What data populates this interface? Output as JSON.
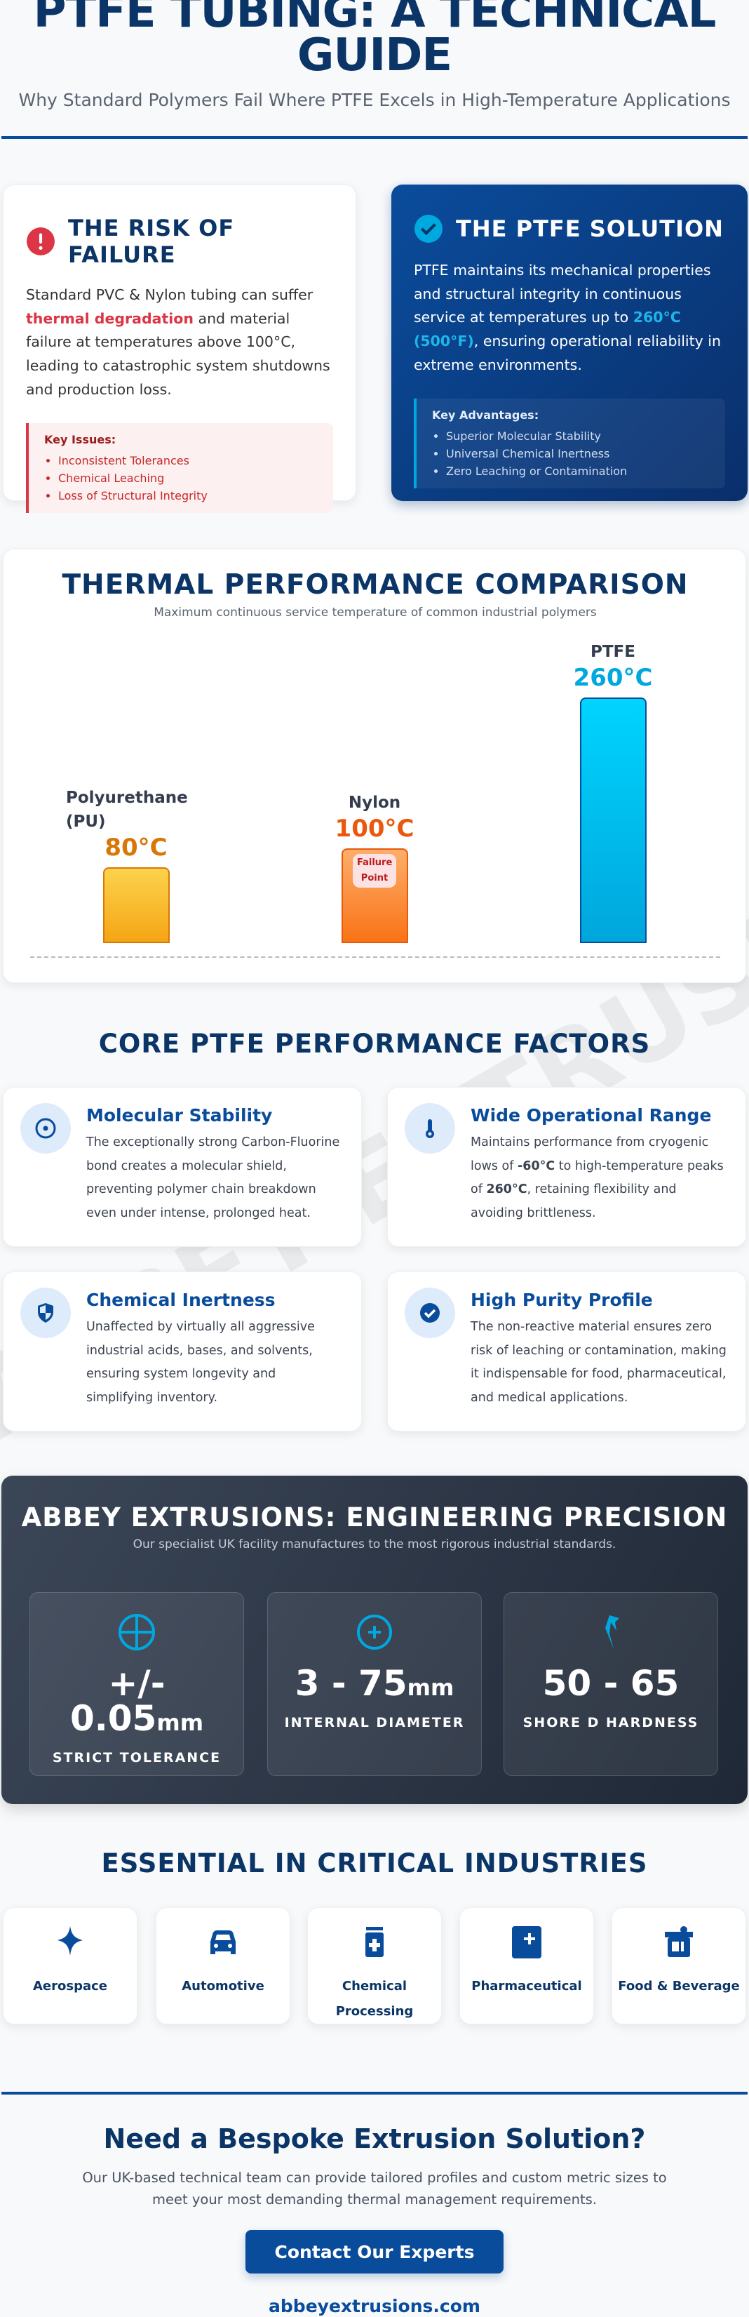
{
  "header": {
    "title": "PTFE TUBING: A TECHNICAL GUIDE",
    "subtitle": "Why Standard Polymers Fail Where PTFE Excels in High-Temperature Applications"
  },
  "risk": {
    "heading": "THE RISK OF FAILURE",
    "icon": "exclamation-circle-icon",
    "text_before": "Standard PVC & Nylon tubing can suffer ",
    "highlight": "thermal degradation",
    "text_after": " and material failure at temperatures above 100°C, leading to catastrophic system shutdowns and production loss.",
    "key_title": "Key Issues:",
    "items": [
      "Inconsistent Tolerances",
      "Chemical Leaching",
      "Loss of Structural Integrity"
    ]
  },
  "solution": {
    "heading": "THE PTFE SOLUTION",
    "icon": "check-circle-icon",
    "text_before": "PTFE maintains its mechanical properties and structural integrity in continuous service at temperatures up to ",
    "highlight": "260°C (500°F)",
    "text_after": ", ensuring operational reliability in extreme environments.",
    "key_title": "Key Advantages:",
    "items": [
      "Superior Molecular Stability",
      "Universal Chemical Inertness",
      "Zero Leaching or Contamination"
    ]
  },
  "chart_data": {
    "type": "bar",
    "title": "THERMAL PERFORMANCE COMPARISON",
    "subtitle": "Maximum continuous service temperature of common industrial polymers",
    "categories": [
      "Polyurethane (PU)",
      "Nylon",
      "PTFE"
    ],
    "values": [
      80,
      100,
      260
    ],
    "value_labels": [
      "80°C",
      "100°C",
      "260°C"
    ],
    "unit": "°C",
    "ylim": [
      0,
      260
    ],
    "grid": false,
    "annotation": "Failure Point",
    "colors": [
      "#f5a514",
      "#f97316",
      "#00b4e6"
    ]
  },
  "factors": {
    "title": "CORE PTFE PERFORMANCE FACTORS",
    "items": [
      {
        "icon": "target-icon",
        "heading": "Molecular Stability",
        "text": "The exceptionally strong Carbon-Fluorine bond creates a molecular shield, preventing polymer chain breakdown even under intense, prolonged heat."
      },
      {
        "icon": "thermometer-icon",
        "heading": "Wide Operational Range",
        "text_a": "Maintains performance from cryogenic lows of ",
        "bold_a": "-60°C",
        "text_b": " to high-temperature peaks of ",
        "bold_b": "260°C",
        "text_c": ", retaining flexibility and avoiding brittleness."
      },
      {
        "icon": "shield-icon",
        "heading": "Chemical Inertness",
        "text": "Unaffected by virtually all aggressive industrial acids, bases, and solvents, ensuring system longevity and simplifying inventory."
      },
      {
        "icon": "check-badge-icon",
        "heading": "High Purity Profile",
        "text": "The non-reactive material ensures zero risk of leaching or contamination, making it indispensable for food, pharmaceutical, and medical applications."
      }
    ]
  },
  "watermark": "ABBEY EXTRUSIONS",
  "precision": {
    "title": "ABBEY EXTRUSIONS: ENGINEERING PRECISION",
    "subtitle": "Our specialist UK facility manufactures to the most rigorous industrial standards.",
    "stats": [
      {
        "icon": "crosshair-icon",
        "value": "+/- 0.05",
        "unit": "mm",
        "label": "STRICT TOLERANCE"
      },
      {
        "icon": "plus-circle-icon",
        "value": "3 - 75",
        "unit": "mm",
        "label": "INTERNAL DIAMETER"
      },
      {
        "icon": "hardness-icon",
        "value": "50 - 65",
        "unit": "",
        "label": "SHORE D HARDNESS"
      }
    ]
  },
  "industries": {
    "title": "ESSENTIAL IN CRITICAL INDUSTRIES",
    "items": [
      {
        "icon": "sparkle-icon",
        "label": "Aerospace"
      },
      {
        "icon": "car-icon",
        "label": "Automotive"
      },
      {
        "icon": "medicine-bottle-icon",
        "label": "Chemical Processing"
      },
      {
        "icon": "medical-kit-icon",
        "label": "Pharmaceutical"
      },
      {
        "icon": "food-container-icon",
        "label": "Food & Beverage"
      }
    ]
  },
  "cta": {
    "title": "Need a Bespoke Extrusion Solution?",
    "text": "Our UK-based technical team can provide tailored profiles and custom metric sizes to meet your most demanding thermal management requirements.",
    "button": "Contact Our Experts",
    "link": "abbeyextrusions.com"
  },
  "colors": {
    "navy": "#0a3566",
    "blue": "#0a4c9c",
    "red": "#dc3545",
    "cyan": "#00a8e0"
  }
}
